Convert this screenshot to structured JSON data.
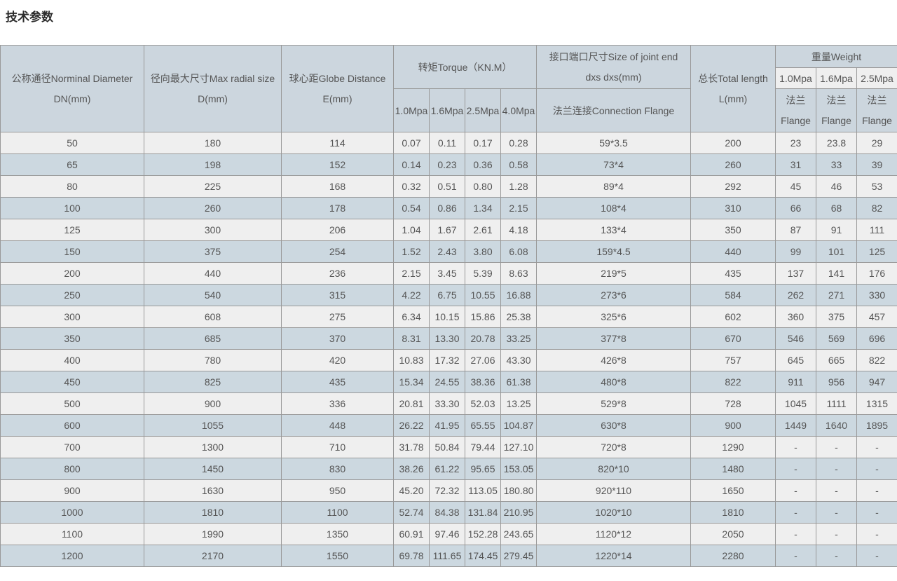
{
  "page": {
    "title": "技术参数"
  },
  "colors": {
    "header_bg": "#ccd6de",
    "row_bg": "#efefef",
    "row_alt_bg": "#ccd8e0",
    "border": "#999999",
    "text": "#555555"
  },
  "table": {
    "headers": {
      "dn": {
        "line1": "公称通径Norminal Diameter",
        "line2": "DN(mm)"
      },
      "d": {
        "line1": "径向最大尺寸Max radial size",
        "line2": "D(mm)"
      },
      "e": {
        "line1": "球心距Globe Distance",
        "line2": "E(mm)"
      },
      "torque": {
        "title": "转矩Torque（KN.M）",
        "subs": [
          "1.0Mpa",
          "1.6Mpa",
          "2.5Mpa",
          "4.0Mpa"
        ]
      },
      "joint": {
        "line1": "接口端口尺寸Size of joint end",
        "line2": "dxs dxs(mm)",
        "sub": "法兰连接Connection Flange"
      },
      "length": {
        "line1": "总长Total length",
        "line2": "L(mm)"
      },
      "weight": {
        "title": "重量Weight",
        "subs": [
          "1.0Mpa",
          "1.6Mpa",
          "2.5Mpa"
        ],
        "flange_line1": "法兰",
        "flange_line2": "Flange"
      }
    },
    "rows": [
      [
        "50",
        "180",
        "114",
        "0.07",
        "0.11",
        "0.17",
        "0.28",
        "59*3.5",
        "200",
        "23",
        "23.8",
        "29"
      ],
      [
        "65",
        "198",
        "152",
        "0.14",
        "0.23",
        "0.36",
        "0.58",
        "73*4",
        "260",
        "31",
        "33",
        "39"
      ],
      [
        "80",
        "225",
        "168",
        "0.32",
        "0.51",
        "0.80",
        "1.28",
        "89*4",
        "292",
        "45",
        "46",
        "53"
      ],
      [
        "100",
        "260",
        "178",
        "0.54",
        "0.86",
        "1.34",
        "2.15",
        "108*4",
        "310",
        "66",
        "68",
        "82"
      ],
      [
        "125",
        "300",
        "206",
        "1.04",
        "1.67",
        "2.61",
        "4.18",
        "133*4",
        "350",
        "87",
        "91",
        "111"
      ],
      [
        "150",
        "375",
        "254",
        "1.52",
        "2.43",
        "3.80",
        "6.08",
        "159*4.5",
        "440",
        "99",
        "101",
        "125"
      ],
      [
        "200",
        "440",
        "236",
        "2.15",
        "3.45",
        "5.39",
        "8.63",
        "219*5",
        "435",
        "137",
        "141",
        "176"
      ],
      [
        "250",
        "540",
        "315",
        "4.22",
        "6.75",
        "10.55",
        "16.88",
        "273*6",
        "584",
        "262",
        "271",
        "330"
      ],
      [
        "300",
        "608",
        "275",
        "6.34",
        "10.15",
        "15.86",
        "25.38",
        "325*6",
        "602",
        "360",
        "375",
        "457"
      ],
      [
        "350",
        "685",
        "370",
        "8.31",
        "13.30",
        "20.78",
        "33.25",
        "377*8",
        "670",
        "546",
        "569",
        "696"
      ],
      [
        "400",
        "780",
        "420",
        "10.83",
        "17.32",
        "27.06",
        "43.30",
        "426*8",
        "757",
        "645",
        "665",
        "822"
      ],
      [
        "450",
        "825",
        "435",
        "15.34",
        "24.55",
        "38.36",
        "61.38",
        "480*8",
        "822",
        "911",
        "956",
        "947"
      ],
      [
        "500",
        "900",
        "336",
        "20.81",
        "33.30",
        "52.03",
        "13.25",
        "529*8",
        "728",
        "1045",
        "1111",
        "1315"
      ],
      [
        "600",
        "1055",
        "448",
        "26.22",
        "41.95",
        "65.55",
        "104.87",
        "630*8",
        "900",
        "1449",
        "1640",
        "1895"
      ],
      [
        "700",
        "1300",
        "710",
        "31.78",
        "50.84",
        "79.44",
        "127.10",
        "720*8",
        "1290",
        "-",
        "-",
        "-"
      ],
      [
        "800",
        "1450",
        "830",
        "38.26",
        "61.22",
        "95.65",
        "153.05",
        "820*10",
        "1480",
        "-",
        "-",
        "-"
      ],
      [
        "900",
        "1630",
        "950",
        "45.20",
        "72.32",
        "113.05",
        "180.80",
        "920*110",
        "1650",
        "-",
        "-",
        "-"
      ],
      [
        "1000",
        "1810",
        "1100",
        "52.74",
        "84.38",
        "131.84",
        "210.95",
        "1020*10",
        "1810",
        "-",
        "-",
        "-"
      ],
      [
        "1100",
        "1990",
        "1350",
        "60.91",
        "97.46",
        "152.28",
        "243.65",
        "1120*12",
        "2050",
        "-",
        "-",
        "-"
      ],
      [
        "1200",
        "2170",
        "1550",
        "69.78",
        "111.65",
        "174.45",
        "279.45",
        "1220*14",
        "2280",
        "-",
        "-",
        "-"
      ]
    ]
  }
}
